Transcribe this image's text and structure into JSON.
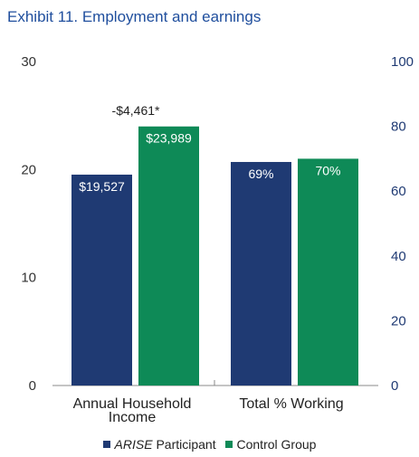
{
  "title": "Exhibit 11. Employment and earnings",
  "chart_data": {
    "type": "bar",
    "categories": [
      "Annual Household Income",
      "Total % Working"
    ],
    "category_label_lines": [
      [
        "Annual Household",
        "Income"
      ],
      [
        "Total % Working"
      ]
    ],
    "series": [
      {
        "name_italic": "ARISE",
        "name_rest": " Participant",
        "color": "#1f3a73",
        "values": [
          19527,
          69
        ],
        "labels": [
          "$19,527",
          "69%"
        ]
      },
      {
        "name_italic": "",
        "name_rest": "Control Group",
        "color": "#0e8a57",
        "values": [
          23989,
          70
        ],
        "labels": [
          "$23,989",
          "70%"
        ]
      }
    ],
    "axes": [
      {
        "side": "left",
        "min": 0,
        "max": 30,
        "ticks": [
          "0",
          "10",
          "20",
          "30"
        ],
        "color": "#333333",
        "applies_to": "Annual Household Income",
        "units_per_value": 1000
      },
      {
        "side": "right",
        "min": 0,
        "max": 100,
        "ticks": [
          "0",
          "20",
          "40",
          "60",
          "80",
          "100"
        ],
        "color": "#1f3a73",
        "applies_to": "Total % Working",
        "units_per_value": 1
      }
    ],
    "annotations": [
      {
        "category_index": 0,
        "text": "-$4,461*"
      }
    ],
    "legend_position": "bottom",
    "grid": false
  }
}
